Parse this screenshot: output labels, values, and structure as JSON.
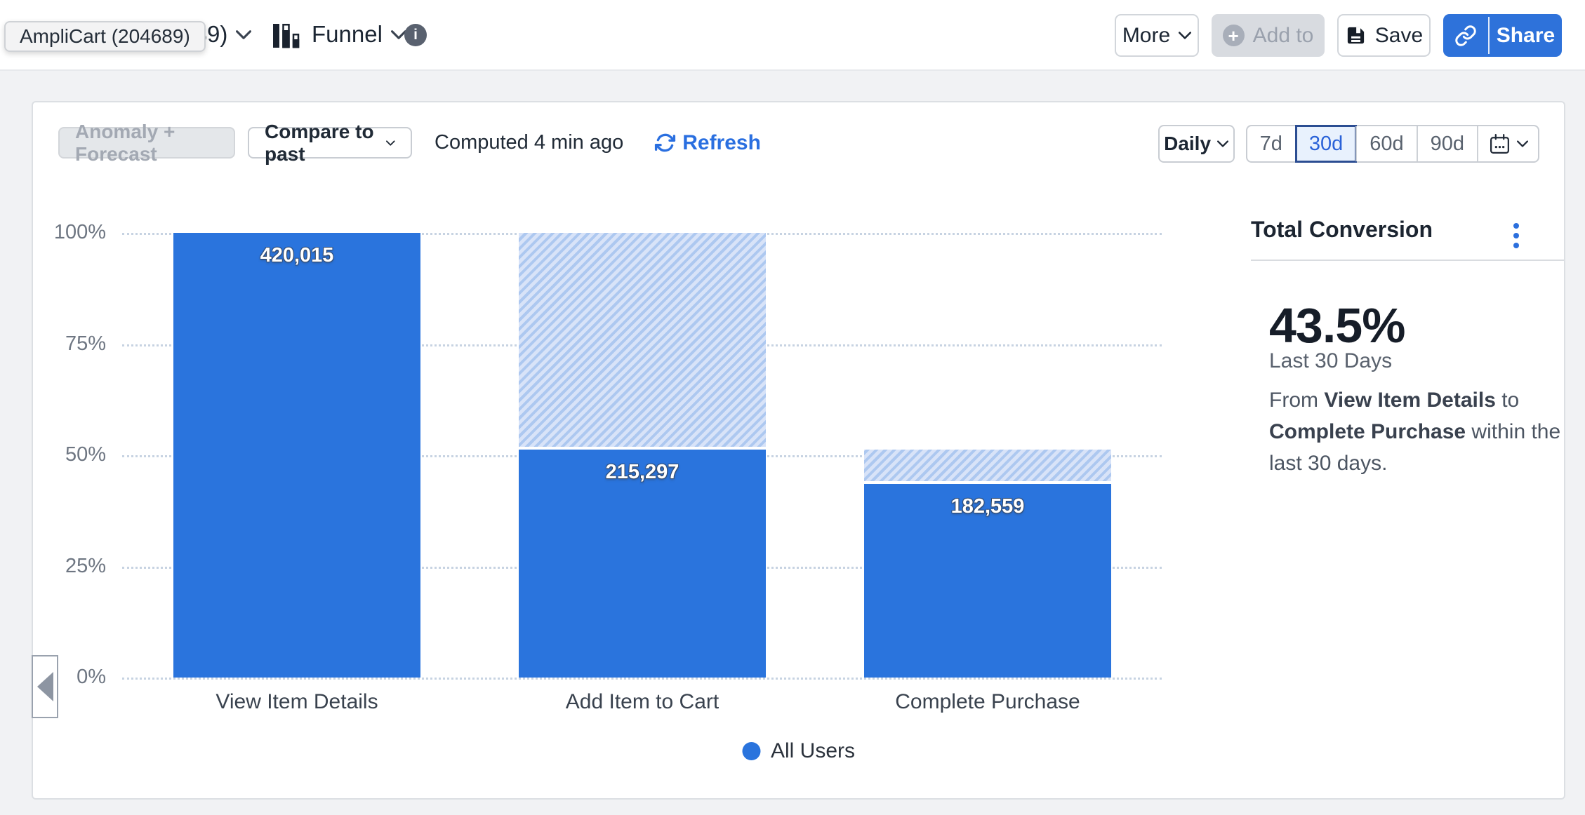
{
  "tooltip": "AmpliCart (204689)",
  "topbar": {
    "project_fragment": "4689)",
    "chart_type_label": "Funnel",
    "more_label": "More",
    "add_to_label": "Add to",
    "save_label": "Save",
    "share_label": "Share"
  },
  "toolbar": {
    "anomaly_label": "Anomaly + Forecast",
    "compare_label": "Compare to past",
    "computed_label": "Computed 4 min ago",
    "refresh_label": "Refresh",
    "interval_label": "Daily",
    "ranges": [
      "7d",
      "30d",
      "60d",
      "90d"
    ],
    "selected_range": "30d"
  },
  "chart_data": {
    "type": "bar",
    "subtype": "funnel",
    "categories": [
      "View Item Details",
      "Add Item to Cart",
      "Complete Purchase"
    ],
    "series": [
      {
        "name": "All Users",
        "values": [
          420015,
          215297,
          182559
        ]
      }
    ],
    "value_labels": [
      "420,015",
      "215,297",
      "182,559"
    ],
    "pct_of_first": [
      100,
      51.26,
      43.47
    ],
    "hatch_top_pct": [
      100,
      100,
      51.26
    ],
    "y_ticks": [
      "100%",
      "75%",
      "50%",
      "25%",
      "0%"
    ],
    "ylim": [
      0,
      100
    ],
    "grid": "horizontal-dotted",
    "legend_position": "bottom-center",
    "colors": {
      "bar": "#2a74dd",
      "hatch_bg": "#d8e3f8",
      "hatch_stripe": "#adc8f0"
    }
  },
  "summary": {
    "title": "Total Conversion",
    "value": "43.5%",
    "period": "Last 30 Days",
    "description": [
      {
        "text": "From ",
        "bold": false
      },
      {
        "text": "View Item Details",
        "bold": true
      },
      {
        "text": " to ",
        "bold": false
      },
      {
        "text": "Complete Purchase",
        "bold": true
      },
      {
        "text": " within the last 30 days.",
        "bold": false
      }
    ]
  },
  "colors": {
    "accent_blue": "#2a74dd",
    "refresh_blue": "#2a6fe0",
    "selected_range_bg": "#e8f1fd",
    "selected_range_border": "#2b4d92",
    "selected_range_text": "#2a62d8",
    "page_bg": "#f1f2f4"
  }
}
